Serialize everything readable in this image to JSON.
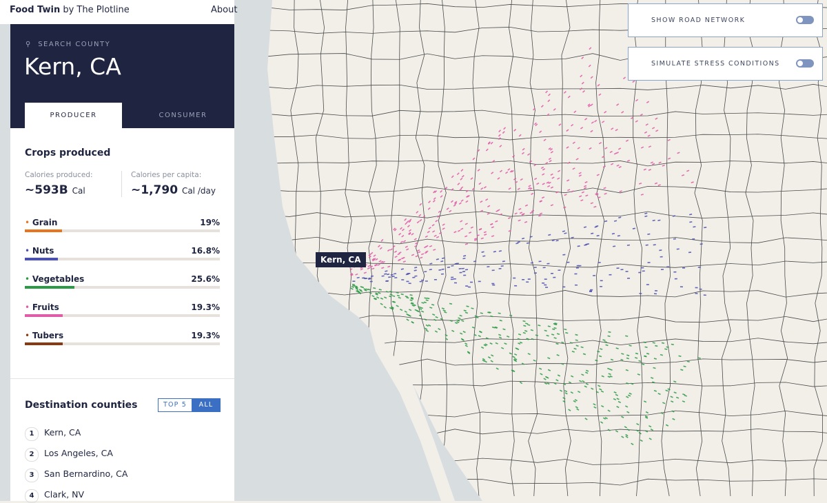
{
  "header": {
    "brand": "Food Twin",
    "byline": "by The Plotline",
    "about": "About"
  },
  "panel": {
    "search_label": "SEARCH COUNTY",
    "county": "Kern, CA",
    "tabs": [
      "PRODUCER",
      "CONSUMER"
    ],
    "crops_title": "Crops produced",
    "stats": [
      {
        "label": "Calories produced:",
        "value": "~593B",
        "unit": "Cal"
      },
      {
        "label": "Calories per capita:",
        "value": "~1,790",
        "unit": "Cal /day"
      }
    ],
    "crops": [
      {
        "name": "Grain",
        "value": 19,
        "label": "19%",
        "color": "#e8741e"
      },
      {
        "name": "Nuts",
        "value": 16.8,
        "label": "16.8%",
        "color": "#4b4fae"
      },
      {
        "name": "Vegetables",
        "value": 25.6,
        "label": "25.6%",
        "color": "#2b9a45"
      },
      {
        "name": "Fruits",
        "value": 19.3,
        "label": "19.3%",
        "color": "#e05ba8"
      },
      {
        "name": "Tubers",
        "value": 19.3,
        "label": "19.3%",
        "color": "#8a3a12"
      }
    ],
    "destinations_title": "Destination counties",
    "filters": [
      "TOP 5",
      "ALL"
    ],
    "destinations": [
      {
        "rank": 1,
        "name": "Kern, CA"
      },
      {
        "rank": 2,
        "name": "Los Angeles, CA"
      },
      {
        "rank": 3,
        "name": "San Bernardino, CA"
      },
      {
        "rank": 4,
        "name": "Clark, NV"
      }
    ]
  },
  "map": {
    "label": "Kern, CA",
    "toggles": [
      "SHOW ROAD NETWORK",
      "SIMULATE STRESS CONDITIONS"
    ]
  }
}
